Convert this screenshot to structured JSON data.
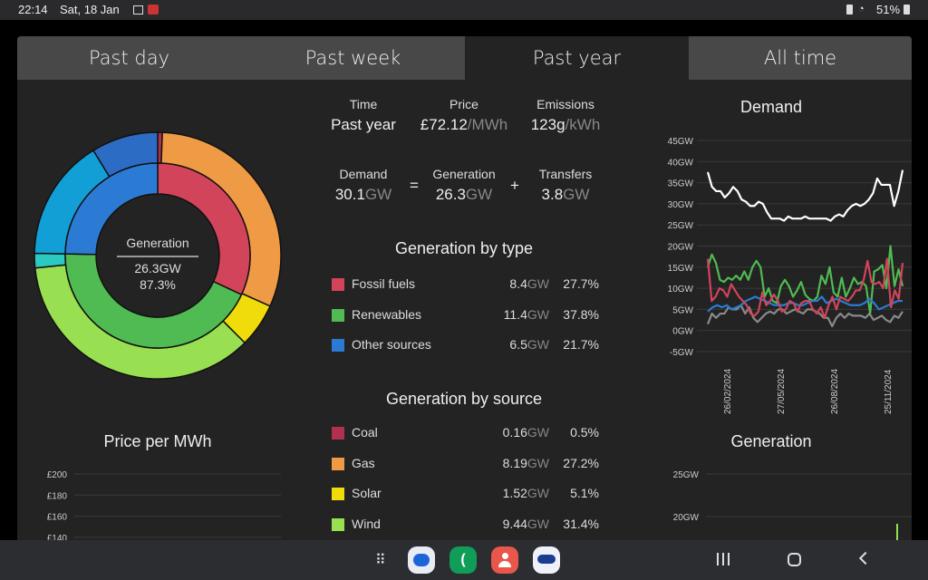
{
  "status": {
    "time": "22:14",
    "date": "Sat, 18 Jan",
    "battery": "51%"
  },
  "tabs": [
    {
      "label": "Past day"
    },
    {
      "label": "Past week"
    },
    {
      "label": "Past year",
      "active": true
    },
    {
      "label": "All time"
    }
  ],
  "summary": {
    "time_label": "Time",
    "time_value": "Past year",
    "price_label": "Price",
    "price_value": "£72.12",
    "price_unit": "/MWh",
    "emissions_label": "Emissions",
    "emissions_value": "123g",
    "emissions_unit": "/kWh",
    "demand_label": "Demand",
    "demand_value": "30.1",
    "generation_label": "Generation",
    "generation_value": "26.3",
    "transfers_label": "Transfers",
    "transfers_value": "3.8",
    "unit": "GW",
    "equals": "=",
    "plus": "+"
  },
  "donut": {
    "label": "Generation",
    "value": "26.3GW",
    "percent": "87.3%",
    "inner": [
      {
        "value": 8.4,
        "color": "#d2445a"
      },
      {
        "value": 11.4,
        "color": "#4fbb52"
      },
      {
        "value": 6.5,
        "color": "#2b7bd4"
      }
    ],
    "outer": [
      {
        "value": 0.16,
        "color": "#b0304f"
      },
      {
        "value": 8.19,
        "color": "#ef9a45"
      },
      {
        "value": 1.52,
        "color": "#f0dc0a"
      },
      {
        "value": 9.44,
        "color": "#98e052"
      },
      {
        "value": 0.5,
        "color": "#2cc9c0"
      },
      {
        "value": 4.2,
        "color": "#129fd6"
      },
      {
        "value": 2.3,
        "color": "#2d6cc4"
      }
    ]
  },
  "by_type": {
    "title": "Generation by type",
    "rows": [
      {
        "label": "Fossil fuels",
        "value": "8.4",
        "unit": "GW",
        "percent": "27.7%",
        "color": "#d2445a"
      },
      {
        "label": "Renewables",
        "value": "11.4",
        "unit": "GW",
        "percent": "37.8%",
        "color": "#4fbb52"
      },
      {
        "label": "Other sources",
        "value": "6.5",
        "unit": "GW",
        "percent": "21.7%",
        "color": "#2b7bd4"
      }
    ]
  },
  "by_source": {
    "title": "Generation by source",
    "rows": [
      {
        "label": "Coal",
        "value": "0.16",
        "unit": "GW",
        "percent": "0.5%",
        "color": "#b0304f"
      },
      {
        "label": "Gas",
        "value": "8.19",
        "unit": "GW",
        "percent": "27.2%",
        "color": "#ef9a45"
      },
      {
        "label": "Solar",
        "value": "1.52",
        "unit": "GW",
        "percent": "5.1%",
        "color": "#f0dc0a"
      },
      {
        "label": "Wind",
        "value": "9.44",
        "unit": "GW",
        "percent": "31.4%",
        "color": "#98e052"
      }
    ]
  },
  "chart_data": [
    {
      "type": "line",
      "title": "Demand",
      "ylim": [
        -5,
        45
      ],
      "yticks": [
        "45GW",
        "40GW",
        "35GW",
        "30GW",
        "25GW",
        "20GW",
        "15GW",
        "10GW",
        "5GW",
        "0GW",
        "-5GW"
      ],
      "xticks": [
        "26/02/2024",
        "27/05/2024",
        "26/08/2024",
        "25/11/2024"
      ],
      "series": [
        {
          "name": "demand",
          "color": "#ffffff",
          "values": [
            37.5,
            34,
            33,
            33,
            31.5,
            32.5,
            34,
            33,
            31,
            30.5,
            29.5,
            29.5,
            30.5,
            30,
            28,
            26.5,
            26.5,
            26.5,
            26,
            27,
            26.5,
            26.5,
            26.5,
            27,
            26.5,
            26.5,
            26.5,
            26.5,
            26.5,
            26,
            27,
            27.5,
            27,
            28.5,
            29.5,
            30,
            29.5,
            30,
            31,
            32.5,
            36,
            34.5,
            34.5,
            34.5,
            29.5,
            33,
            38
          ]
        },
        {
          "name": "renewables",
          "color": "#4fbb52",
          "values": [
            15,
            18,
            16,
            12,
            11.5,
            12.5,
            12,
            13,
            12,
            14,
            12,
            15,
            16.5,
            15,
            8,
            10,
            7,
            6.5,
            10.5,
            12,
            10.5,
            8,
            9.5,
            11.5,
            8.5,
            7.5,
            7,
            8,
            13,
            11,
            15,
            9,
            8,
            12.5,
            8,
            10,
            12.5,
            11,
            11.5,
            10.5,
            4,
            14,
            14.5,
            15.5,
            10,
            20,
            10.5,
            14.5,
            10.5
          ]
        },
        {
          "name": "fossil",
          "color": "#d2445a",
          "values": [
            17,
            7,
            8,
            10,
            9.5,
            8,
            11,
            9.5,
            8,
            7,
            6,
            4,
            3.5,
            4.5,
            9,
            6,
            7,
            8.5,
            7,
            4.5,
            5,
            7,
            6.5,
            4.5,
            6.5,
            7,
            7,
            5,
            4,
            5.5,
            3,
            6,
            8,
            5,
            8,
            7.5,
            7,
            8,
            9.5,
            9.5,
            12,
            16.5,
            11.5,
            11,
            11.5,
            10,
            17,
            5.5,
            9.5,
            7.5,
            16
          ]
        },
        {
          "name": "other",
          "color": "#2b7bd4",
          "values": [
            4.5,
            5.5,
            6,
            5.5,
            6,
            5,
            5.5,
            6,
            7,
            7.5,
            8,
            7.5,
            7,
            6.5,
            6,
            6,
            6,
            6.5,
            6.5,
            6,
            6,
            6.5,
            7,
            7,
            8,
            6.5,
            7,
            7.5,
            7,
            6.5,
            6,
            6,
            6,
            6.5,
            7.5,
            6.5,
            5,
            5.5,
            6,
            6.5,
            7,
            7
          ]
        },
        {
          "name": "transfers",
          "color": "#8a8a8a",
          "values": [
            1.5,
            4,
            3,
            4,
            4,
            5.5,
            5,
            5,
            6,
            4,
            5.5,
            3,
            2,
            3,
            4,
            4.5,
            4,
            5,
            5,
            4,
            4.5,
            5,
            4.5,
            4,
            5,
            5,
            4.5,
            4,
            3,
            3,
            1,
            3,
            4,
            3,
            4,
            3.5,
            3.5,
            3.5,
            3,
            4,
            2.5,
            3,
            3.5,
            2.5,
            2,
            3.5,
            3,
            4.5
          ]
        }
      ]
    },
    {
      "type": "line",
      "title": "Price per MWh",
      "yticks": [
        "£200",
        "£180",
        "£160",
        "£140"
      ]
    },
    {
      "type": "line",
      "title": "Generation",
      "yticks": [
        "25GW",
        "20GW"
      ]
    }
  ]
}
